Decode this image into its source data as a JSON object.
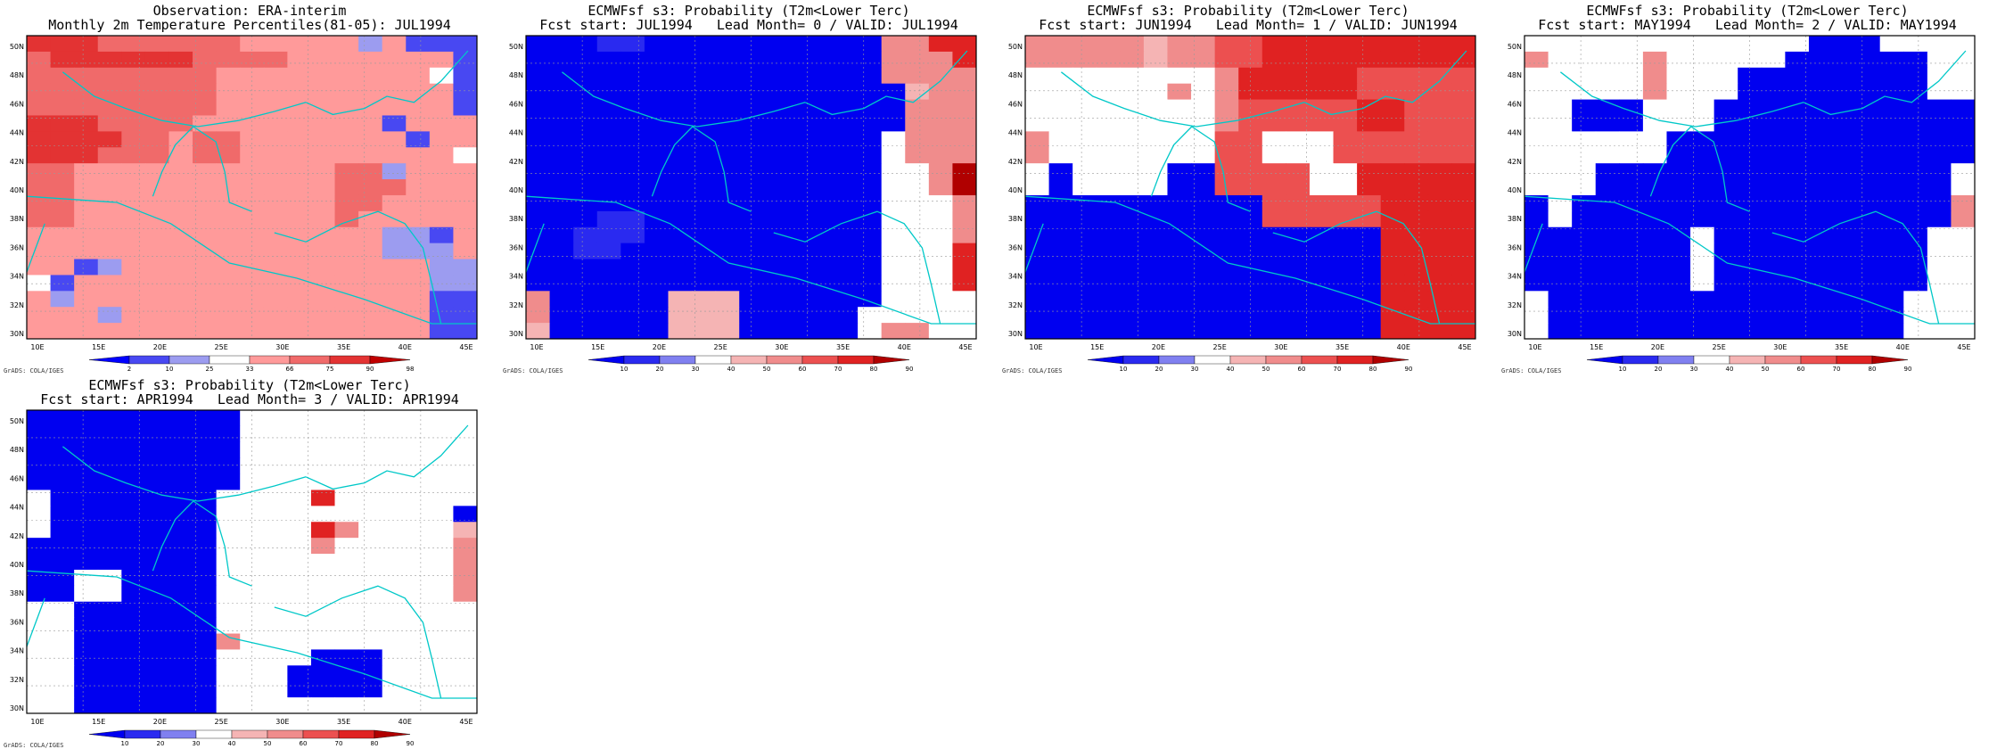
{
  "panels": [
    {
      "title_line1": "Observation: ERA-interim",
      "title_line2": "Monthly 2m Temperature Percentiles(81-05): JUL1994",
      "colorbar_labels": [
        "2",
        "10",
        "25",
        "33",
        "66",
        "75",
        "90",
        "98"
      ],
      "grid": [
        "6665555554444424111",
        "5666666555544444441",
        "5555555544444444431",
        "5555555544444444441",
        "5555555544444444441",
        "6665555444444441444",
        "6666554554444444144",
        "6665554554444444443",
        "5544444444444552444",
        "5544444444444555444",
        "5544444444444554444",
        "5544444444444544444",
        "4444444444444442214",
        "4444444444444442224",
        "4412444444444444422",
        "3144444444444444422",
        "4244444444444444411",
        "4442444444444444411",
        "4444444444444444411"
      ],
      "palette": [
        "#0000ff",
        "#4848f2",
        "#9c9cf0",
        "#ffffff",
        "#ff9a9a",
        "#f06a6a",
        "#e33333",
        "#c00000"
      ]
    },
    {
      "title_line1": "ECMWFsf s3: Probability (T2m<Lower Terc)",
      "title_line2": "Fcst start: JUL1994   Lead Month= 0 / VALID: JUL1994",
      "colorbar_labels": [
        "10",
        "20",
        "30",
        "40",
        "50",
        "60",
        "70",
        "80",
        "90"
      ],
      "grid": [
        "0001100000000005577",
        "0000000000000005557",
        "0000000000000005555",
        "0000000000000000455",
        "0000000000000000555",
        "0000000000000000555",
        "0000000000000003555",
        "0000000000000003555",
        "0000000000000003358",
        "0000000000000003358",
        "0000000000000003335",
        "0001100000000003335",
        "0011100000000003335",
        "0011000000000003337",
        "0000000000000003337",
        "0000000000000003337",
        "5000004440000003333",
        "5000004440000033333",
        "4000004440000035533"
      ],
      "palette": [
        "#0000f0",
        "#2a2af0",
        "#8080f0",
        "#ffffff",
        "#f5b4b4",
        "#f08c8c",
        "#ec5050",
        "#e02222",
        "#b00000"
      ]
    },
    {
      "title_line1": "ECMWFsf s3: Probability (T2m<Lower Terc)",
      "title_line2": "Fcst start: JUN1994   Lead Month= 1 / VALID: JUN1994",
      "colorbar_labels": [
        "10",
        "20",
        "30",
        "40",
        "50",
        "60",
        "70",
        "80",
        "90"
      ],
      "grid": [
        "5555545566777777777",
        "5555545566777777777",
        "3333333357777766666",
        "3333335357777766666",
        "3333333356666677666",
        "3333333356666677666",
        "5333333366333666666",
        "5333333366333666666",
        "3033330066663377777",
        "3033330066663377777",
        "0000000000666667777",
        "0000000000666667777",
        "0000000000000007777",
        "0000000000000007777",
        "0000000000000007777",
        "0000000000000007777",
        "0000000000000007777",
        "0000000000000007777",
        "0000000000000007777"
      ],
      "palette": [
        "#0000f0",
        "#2a2af0",
        "#8080f0",
        "#ffffff",
        "#f5b4b4",
        "#f08c8c",
        "#ec5050",
        "#e02222",
        "#b00000"
      ]
    },
    {
      "title_line1": "ECMWFsf s3: Probability (T2m<Lower Terc)",
      "title_line2": "Fcst start: MAY1994   Lead Month= 2 / VALID: MAY1994",
      "colorbar_labels": [
        "10",
        "20",
        "30",
        "40",
        "50",
        "60",
        "70",
        "80",
        "90"
      ],
      "grid": [
        "3333333333330003333",
        "5333353333300000033",
        "3333353330000000033",
        "3333353330000000033",
        "3300033300000000000",
        "3300033300000000000",
        "3333330000000000000",
        "3333330000000000000",
        "3330000000000000003",
        "3330000000000000003",
        "0300000000000000005",
        "0300000000000000005",
        "0000000300000000033",
        "0000000300000000033",
        "0000000300000000033",
        "0000000300000000033",
        "3000000000000000333",
        "3000000000000000333",
        "3000000000000000333"
      ],
      "palette": [
        "#0000f0",
        "#2a2af0",
        "#8080f0",
        "#ffffff",
        "#f5b4b4",
        "#f08c8c",
        "#ec5050",
        "#e02222",
        "#b00000"
      ]
    },
    {
      "title_line1": "ECMWFsf s3: Probability (T2m<Lower Terc)",
      "title_line2": "Fcst start: APR1994   Lead Month= 3 / VALID: APR1994",
      "colorbar_labels": [
        "10",
        "20",
        "30",
        "40",
        "50",
        "60",
        "70",
        "80",
        "90"
      ],
      "grid": [
        "0000000003333333333",
        "0000000003333333333",
        "0000000003333333333",
        "0000000003333333333",
        "0000000003333333333",
        "3000000033337333333",
        "3000000033333333330",
        "3000000033337533334",
        "0000000033335333335",
        "0000000033333333335",
        "0033000033333333335",
        "0033000033333333335",
        "3300000033333333333",
        "3300000033333333333",
        "3300000053333333333",
        "3300000033330003333",
        "3300000033300003333",
        "3300000033300003333",
        "3300000033333333333"
      ],
      "palette": [
        "#0000f0",
        "#2a2af0",
        "#8080f0",
        "#ffffff",
        "#f5b4b4",
        "#f08c8c",
        "#ec5050",
        "#e02222",
        "#b00000"
      ]
    }
  ],
  "axis": {
    "lon_labels": [
      "10E",
      "15E",
      "20E",
      "25E",
      "30E",
      "35E",
      "40E",
      "45E"
    ],
    "lat_labels": [
      "30N",
      "32N",
      "34N",
      "36N",
      "38N",
      "40N",
      "42N",
      "44N",
      "46N",
      "48N",
      "50N"
    ]
  },
  "credit": "GrADS: COLA/IGES",
  "colors": {
    "coastline": "#00c8c8",
    "gridline": "#9a9a9a"
  },
  "coastlines": [
    [
      [
        -10,
        0.53
      ],
      [
        0.2,
        0.55
      ],
      [
        0.32,
        0.62
      ],
      [
        0.45,
        0.75
      ],
      [
        0.6,
        0.8
      ],
      [
        0.75,
        0.87
      ],
      [
        0.9,
        0.95
      ],
      [
        1,
        0.95
      ]
    ],
    [
      [
        0.28,
        0.53
      ],
      [
        0.3,
        0.45
      ],
      [
        0.33,
        0.36
      ],
      [
        0.37,
        0.3
      ],
      [
        0.42,
        0.35
      ],
      [
        0.44,
        0.45
      ],
      [
        0.45,
        0.55
      ],
      [
        0.5,
        0.58
      ]
    ],
    [
      [
        0.08,
        0.12
      ],
      [
        0.15,
        0.2
      ],
      [
        0.22,
        0.24
      ],
      [
        0.3,
        0.28
      ],
      [
        0.38,
        0.3
      ],
      [
        0.47,
        0.28
      ],
      [
        0.55,
        0.25
      ],
      [
        0.62,
        0.22
      ]
    ],
    [
      [
        0.62,
        0.22
      ],
      [
        0.68,
        0.26
      ],
      [
        0.75,
        0.24
      ],
      [
        0.8,
        0.2
      ],
      [
        0.86,
        0.22
      ],
      [
        0.92,
        0.15
      ],
      [
        0.98,
        0.05
      ]
    ],
    [
      [
        0.04,
        0.62
      ],
      [
        0.02,
        0.7
      ],
      [
        0,
        0.78
      ]
    ],
    [
      [
        0.55,
        0.65
      ],
      [
        0.62,
        0.68
      ],
      [
        0.7,
        0.62
      ],
      [
        0.78,
        0.58
      ],
      [
        0.84,
        0.62
      ],
      [
        0.88,
        0.7
      ],
      [
        0.9,
        0.82
      ],
      [
        0.92,
        0.95
      ]
    ]
  ]
}
